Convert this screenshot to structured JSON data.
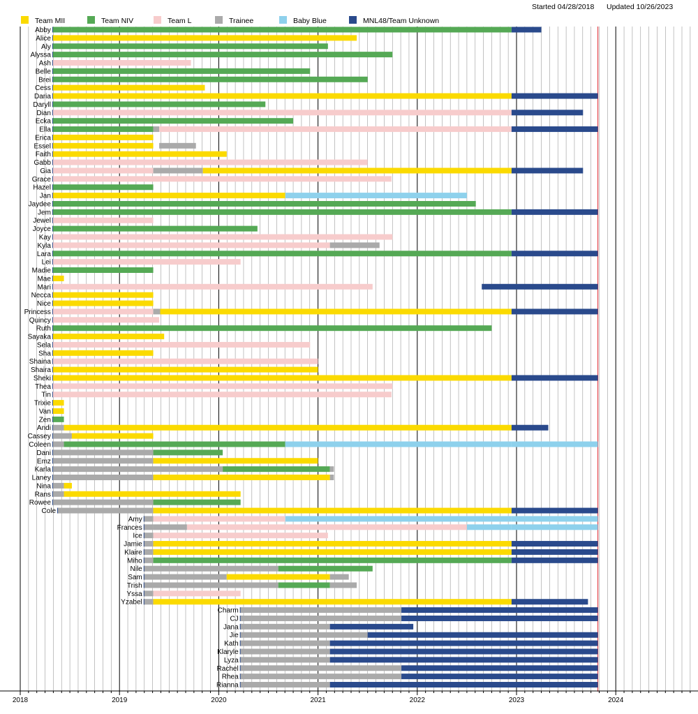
{
  "chart_data": {
    "type": "timeline",
    "header": {
      "started": "Started 04/28/2018",
      "updated": "Updated 10/26/2023"
    },
    "legend": [
      {
        "key": "M",
        "label": "Team MII",
        "color": "#fbda00"
      },
      {
        "key": "N",
        "label": "Team NIV",
        "color": "#55a955"
      },
      {
        "key": "L",
        "label": "Team L",
        "color": "#f7cccc"
      },
      {
        "key": "T",
        "label": "Trainee",
        "color": "#aaaaaa"
      },
      {
        "key": "B",
        "label": "Baby Blue",
        "color": "#8ed1ec"
      },
      {
        "key": "U",
        "label": "MNL48/Team Unknown",
        "color": "#2a4a8c"
      }
    ],
    "x_axis": {
      "start": 2018,
      "end": 2024,
      "ticks": [
        "2018",
        "2019",
        "2020",
        "2021",
        "2022",
        "2023",
        "2024"
      ]
    },
    "update_marker": 2023.82,
    "members": [
      {
        "name": "Abby",
        "segments": [
          [
            2018.33,
            2022.95,
            "N"
          ],
          [
            2022.95,
            2023.25,
            "U"
          ]
        ]
      },
      {
        "name": "Alice",
        "segments": [
          [
            2018.33,
            2021.39,
            "M"
          ]
        ]
      },
      {
        "name": "Aly",
        "segments": [
          [
            2018.33,
            2021.1,
            "N"
          ]
        ]
      },
      {
        "name": "Alyssa",
        "segments": [
          [
            2018.33,
            2021.75,
            "N"
          ]
        ]
      },
      {
        "name": "Ash",
        "segments": [
          [
            2018.33,
            2019.72,
            "L"
          ]
        ]
      },
      {
        "name": "Belle",
        "segments": [
          [
            2018.33,
            2020.92,
            "N"
          ]
        ]
      },
      {
        "name": "Brei",
        "segments": [
          [
            2018.33,
            2021.5,
            "N"
          ]
        ]
      },
      {
        "name": "Cess",
        "segments": [
          [
            2018.33,
            2019.86,
            "M"
          ]
        ]
      },
      {
        "name": "Daria",
        "segments": [
          [
            2018.33,
            2022.95,
            "M"
          ],
          [
            2022.95,
            2023.82,
            "U"
          ]
        ]
      },
      {
        "name": "Daryll",
        "segments": [
          [
            2018.33,
            2020.47,
            "N"
          ]
        ]
      },
      {
        "name": "Dian",
        "segments": [
          [
            2018.33,
            2022.95,
            "L"
          ],
          [
            2022.95,
            2023.67,
            "U"
          ]
        ]
      },
      {
        "name": "Ecka",
        "segments": [
          [
            2018.33,
            2020.75,
            "N"
          ]
        ]
      },
      {
        "name": "Ella",
        "segments": [
          [
            2018.33,
            2019.34,
            "N"
          ],
          [
            2019.34,
            2019.4,
            "T"
          ],
          [
            2019.4,
            2022.95,
            "L"
          ],
          [
            2022.95,
            2023.82,
            "U"
          ]
        ]
      },
      {
        "name": "Erica",
        "segments": [
          [
            2018.33,
            2019.34,
            "M"
          ]
        ]
      },
      {
        "name": "Essel",
        "segments": [
          [
            2018.33,
            2019.34,
            "M"
          ],
          [
            2019.4,
            2019.77,
            "T"
          ]
        ]
      },
      {
        "name": "Faith",
        "segments": [
          [
            2018.33,
            2020.08,
            "M"
          ]
        ]
      },
      {
        "name": "Gabb",
        "segments": [
          [
            2018.33,
            2021.5,
            "L"
          ]
        ]
      },
      {
        "name": "Gia",
        "segments": [
          [
            2018.33,
            2019.34,
            "L"
          ],
          [
            2019.34,
            2019.84,
            "T"
          ],
          [
            2019.84,
            2022.95,
            "M"
          ],
          [
            2022.95,
            2023.67,
            "U"
          ]
        ]
      },
      {
        "name": "Grace",
        "segments": [
          [
            2018.33,
            2021.74,
            "L"
          ]
        ]
      },
      {
        "name": "Hazel",
        "segments": [
          [
            2018.33,
            2019.34,
            "N"
          ]
        ]
      },
      {
        "name": "Jan",
        "segments": [
          [
            2018.33,
            2020.67,
            "M"
          ],
          [
            2020.67,
            2022.5,
            "B"
          ]
        ]
      },
      {
        "name": "Jaydee",
        "segments": [
          [
            2018.33,
            2022.59,
            "N"
          ]
        ]
      },
      {
        "name": "Jem",
        "segments": [
          [
            2018.33,
            2022.95,
            "N"
          ],
          [
            2022.95,
            2023.82,
            "U"
          ]
        ]
      },
      {
        "name": "Jewel",
        "segments": [
          [
            2018.33,
            2019.34,
            "L"
          ]
        ]
      },
      {
        "name": "Joyce",
        "segments": [
          [
            2018.33,
            2020.39,
            "N"
          ]
        ]
      },
      {
        "name": "Kay",
        "segments": [
          [
            2018.33,
            2021.75,
            "L"
          ]
        ]
      },
      {
        "name": "Kyla",
        "segments": [
          [
            2018.33,
            2021.12,
            "L"
          ],
          [
            2021.12,
            2021.62,
            "T"
          ]
        ]
      },
      {
        "name": "Lara",
        "segments": [
          [
            2018.33,
            2022.95,
            "N"
          ],
          [
            2022.95,
            2023.82,
            "U"
          ]
        ]
      },
      {
        "name": "Lei",
        "segments": [
          [
            2018.33,
            2020.22,
            "L"
          ]
        ]
      },
      {
        "name": "Madie",
        "segments": [
          [
            2018.33,
            2019.34,
            "N"
          ]
        ]
      },
      {
        "name": "Mae",
        "segments": [
          [
            2018.33,
            2018.44,
            "M"
          ]
        ]
      },
      {
        "name": "Mari",
        "segments": [
          [
            2018.33,
            2021.55,
            "L"
          ],
          [
            2022.65,
            2023.82,
            "U"
          ]
        ]
      },
      {
        "name": "Necca",
        "segments": [
          [
            2018.33,
            2019.34,
            "M"
          ]
        ]
      },
      {
        "name": "Nice",
        "segments": [
          [
            2018.33,
            2019.34,
            "M"
          ]
        ]
      },
      {
        "name": "Princess",
        "segments": [
          [
            2018.33,
            2019.34,
            "L"
          ],
          [
            2019.34,
            2019.41,
            "T"
          ],
          [
            2019.41,
            2022.95,
            "M"
          ],
          [
            2022.95,
            2023.82,
            "U"
          ]
        ]
      },
      {
        "name": "Quincy",
        "segments": [
          [
            2018.33,
            2019.4,
            "L"
          ]
        ]
      },
      {
        "name": "Ruth",
        "segments": [
          [
            2018.33,
            2022.75,
            "N"
          ]
        ]
      },
      {
        "name": "Sayaka",
        "segments": [
          [
            2018.33,
            2019.45,
            "M"
          ]
        ]
      },
      {
        "name": "Sela",
        "segments": [
          [
            2018.33,
            2020.92,
            "L"
          ]
        ]
      },
      {
        "name": "Sha",
        "segments": [
          [
            2018.33,
            2019.34,
            "M"
          ]
        ]
      },
      {
        "name": "Shaina",
        "segments": [
          [
            2018.33,
            2021.0,
            "L"
          ]
        ]
      },
      {
        "name": "Shaira",
        "segments": [
          [
            2018.33,
            2021.0,
            "M"
          ]
        ]
      },
      {
        "name": "Sheki",
        "segments": [
          [
            2018.33,
            2022.95,
            "M"
          ],
          [
            2022.95,
            2023.82,
            "U"
          ]
        ]
      },
      {
        "name": "Thea",
        "segments": [
          [
            2018.33,
            2021.75,
            "L"
          ]
        ]
      },
      {
        "name": "Tin",
        "segments": [
          [
            2018.33,
            2021.74,
            "L"
          ]
        ]
      },
      {
        "name": "Trixie",
        "segments": [
          [
            2018.33,
            2018.44,
            "M"
          ]
        ]
      },
      {
        "name": "Van",
        "segments": [
          [
            2018.33,
            2018.44,
            "M"
          ]
        ]
      },
      {
        "name": "Zen",
        "segments": [
          [
            2018.33,
            2018.44,
            "N"
          ]
        ]
      },
      {
        "name": "Andi",
        "segments": [
          [
            2018.33,
            2018.44,
            "T"
          ],
          [
            2018.44,
            2022.95,
            "M"
          ],
          [
            2022.95,
            2023.32,
            "U"
          ]
        ]
      },
      {
        "name": "Cassey",
        "segments": [
          [
            2018.33,
            2018.52,
            "T"
          ],
          [
            2018.52,
            2019.34,
            "M"
          ]
        ]
      },
      {
        "name": "Coleen",
        "segments": [
          [
            2018.33,
            2018.44,
            "T"
          ],
          [
            2018.44,
            2020.67,
            "N"
          ],
          [
            2020.67,
            2022.95,
            "B"
          ],
          [
            2022.95,
            2023.82,
            "B"
          ]
        ]
      },
      {
        "name": "Dani",
        "segments": [
          [
            2018.33,
            2019.34,
            "T"
          ],
          [
            2019.34,
            2020.04,
            "N"
          ]
        ]
      },
      {
        "name": "Emz",
        "segments": [
          [
            2018.33,
            2019.34,
            "T"
          ],
          [
            2019.34,
            2021.0,
            "M"
          ]
        ]
      },
      {
        "name": "Karla",
        "segments": [
          [
            2018.33,
            2020.04,
            "T"
          ],
          [
            2020.04,
            2021.12,
            "N"
          ],
          [
            2021.12,
            2021.16,
            "T"
          ]
        ]
      },
      {
        "name": "Laney",
        "segments": [
          [
            2018.33,
            2019.34,
            "T"
          ],
          [
            2019.34,
            2021.12,
            "M"
          ],
          [
            2021.12,
            2021.16,
            "T"
          ]
        ]
      },
      {
        "name": "Nina",
        "segments": [
          [
            2018.33,
            2018.44,
            "T"
          ],
          [
            2018.44,
            2018.52,
            "M"
          ]
        ]
      },
      {
        "name": "Rans",
        "segments": [
          [
            2018.33,
            2018.44,
            "T"
          ],
          [
            2018.44,
            2020.22,
            "M"
          ]
        ]
      },
      {
        "name": "Rowee",
        "segments": [
          [
            2018.33,
            2019.34,
            "T"
          ],
          [
            2019.34,
            2020.22,
            "N"
          ]
        ]
      },
      {
        "name": "Cole",
        "segments": [
          [
            2018.38,
            2019.34,
            "T"
          ],
          [
            2019.34,
            2022.95,
            "M"
          ],
          [
            2022.95,
            2023.82,
            "U"
          ]
        ]
      },
      {
        "name": "Amy",
        "segments": [
          [
            2019.25,
            2019.34,
            "T"
          ],
          [
            2019.34,
            2020.67,
            "L"
          ],
          [
            2020.67,
            2022.95,
            "B"
          ],
          [
            2022.95,
            2023.82,
            "B"
          ]
        ]
      },
      {
        "name": "Frances",
        "segments": [
          [
            2019.25,
            2019.34,
            "T"
          ],
          [
            2019.34,
            2019.68,
            "T"
          ],
          [
            2019.68,
            2022.5,
            "L"
          ],
          [
            2022.5,
            2022.95,
            "B"
          ],
          [
            2022.95,
            2023.82,
            "B"
          ]
        ]
      },
      {
        "name": "Ice",
        "segments": [
          [
            2019.25,
            2019.34,
            "T"
          ],
          [
            2019.34,
            2021.1,
            "L"
          ]
        ]
      },
      {
        "name": "Jamie",
        "segments": [
          [
            2019.25,
            2019.34,
            "T"
          ],
          [
            2019.34,
            2022.95,
            "M"
          ],
          [
            2022.95,
            2023.82,
            "U"
          ]
        ]
      },
      {
        "name": "Klaire",
        "segments": [
          [
            2019.25,
            2019.34,
            "T"
          ],
          [
            2019.34,
            2022.95,
            "M"
          ],
          [
            2022.95,
            2023.82,
            "U"
          ]
        ]
      },
      {
        "name": "Miho",
        "segments": [
          [
            2019.25,
            2019.34,
            "T"
          ],
          [
            2019.34,
            2022.95,
            "N"
          ],
          [
            2022.95,
            2023.82,
            "U"
          ]
        ]
      },
      {
        "name": "Nile",
        "segments": [
          [
            2019.25,
            2020.6,
            "T"
          ],
          [
            2020.6,
            2021.55,
            "N"
          ]
        ]
      },
      {
        "name": "Sam",
        "segments": [
          [
            2019.25,
            2020.08,
            "T"
          ],
          [
            2020.08,
            2021.12,
            "M"
          ],
          [
            2021.12,
            2021.31,
            "T"
          ]
        ]
      },
      {
        "name": "Trish",
        "segments": [
          [
            2019.25,
            2020.6,
            "T"
          ],
          [
            2020.6,
            2021.12,
            "N"
          ],
          [
            2021.12,
            2021.39,
            "T"
          ]
        ]
      },
      {
        "name": "Yssa",
        "segments": [
          [
            2019.25,
            2019.34,
            "T"
          ],
          [
            2019.34,
            2020.22,
            "L"
          ]
        ]
      },
      {
        "name": "Yzabel",
        "segments": [
          [
            2019.25,
            2019.34,
            "T"
          ],
          [
            2019.34,
            2022.95,
            "M"
          ],
          [
            2022.95,
            2023.72,
            "U"
          ]
        ]
      },
      {
        "name": "Charm",
        "segments": [
          [
            2020.22,
            2021.84,
            "T"
          ],
          [
            2021.84,
            2023.82,
            "U"
          ]
        ]
      },
      {
        "name": "CJ",
        "segments": [
          [
            2020.22,
            2021.84,
            "T"
          ],
          [
            2021.84,
            2023.82,
            "U"
          ]
        ]
      },
      {
        "name": "Jana",
        "segments": [
          [
            2020.22,
            2021.12,
            "T"
          ],
          [
            2021.12,
            2021.96,
            "U"
          ]
        ]
      },
      {
        "name": "Jie",
        "segments": [
          [
            2020.22,
            2021.5,
            "T"
          ],
          [
            2021.5,
            2023.82,
            "U"
          ]
        ]
      },
      {
        "name": "Kath",
        "segments": [
          [
            2020.22,
            2021.12,
            "T"
          ],
          [
            2021.12,
            2023.82,
            "U"
          ]
        ]
      },
      {
        "name": "Klaryle",
        "segments": [
          [
            2020.22,
            2021.12,
            "T"
          ],
          [
            2021.12,
            2023.82,
            "U"
          ]
        ]
      },
      {
        "name": "Lyza",
        "segments": [
          [
            2020.22,
            2021.12,
            "T"
          ],
          [
            2021.12,
            2023.82,
            "U"
          ]
        ]
      },
      {
        "name": "Rachel",
        "segments": [
          [
            2020.22,
            2021.84,
            "T"
          ],
          [
            2021.84,
            2023.82,
            "U"
          ]
        ]
      },
      {
        "name": "Rhea",
        "segments": [
          [
            2020.22,
            2021.84,
            "T"
          ],
          [
            2021.84,
            2023.82,
            "U"
          ]
        ]
      },
      {
        "name": "Rianna",
        "segments": [
          [
            2020.22,
            2021.12,
            "T"
          ],
          [
            2021.12,
            2023.82,
            "U"
          ]
        ]
      }
    ]
  }
}
